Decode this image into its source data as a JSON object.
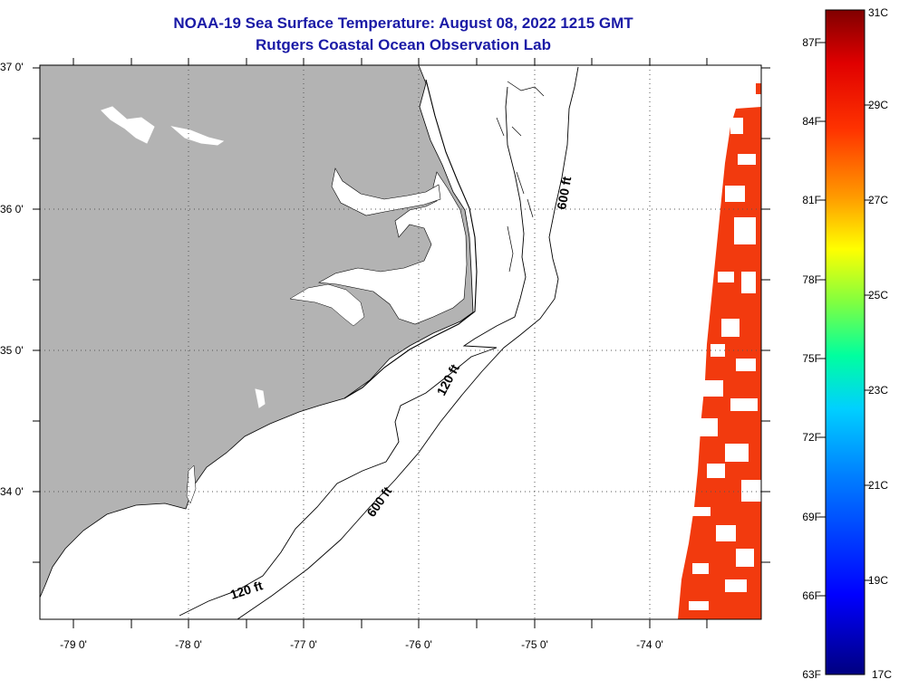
{
  "header": {
    "title": "NOAA-19 Sea Surface Temperature:  August 08, 2022 1215 GMT",
    "subtitle": "Rutgers Coastal Ocean Observation Lab"
  },
  "map": {
    "lat_labels": [
      "37 0'",
      "36 0'",
      "35 0'",
      "34 0'"
    ],
    "lon_labels": [
      "-79 0'",
      "-78 0'",
      "-77 0'",
      "-76 0'",
      "-75 0'",
      "-74 0'"
    ],
    "contour_labels": [
      "600 ft",
      "120 ft",
      "600 ft",
      "120 ft"
    ],
    "colors": {
      "land": "#b3b3b3",
      "sst_warm": "#ff3300",
      "sst_hot": "#f02200"
    }
  },
  "colorbar": {
    "min_f": "63F",
    "min_c": "17C",
    "f_labels": [
      "87F",
      "84F",
      "81F",
      "78F",
      "75F",
      "72F",
      "69F",
      "66F"
    ],
    "c_labels": [
      "31C",
      "29C",
      "27C",
      "25C",
      "23C",
      "21C",
      "19C"
    ]
  }
}
